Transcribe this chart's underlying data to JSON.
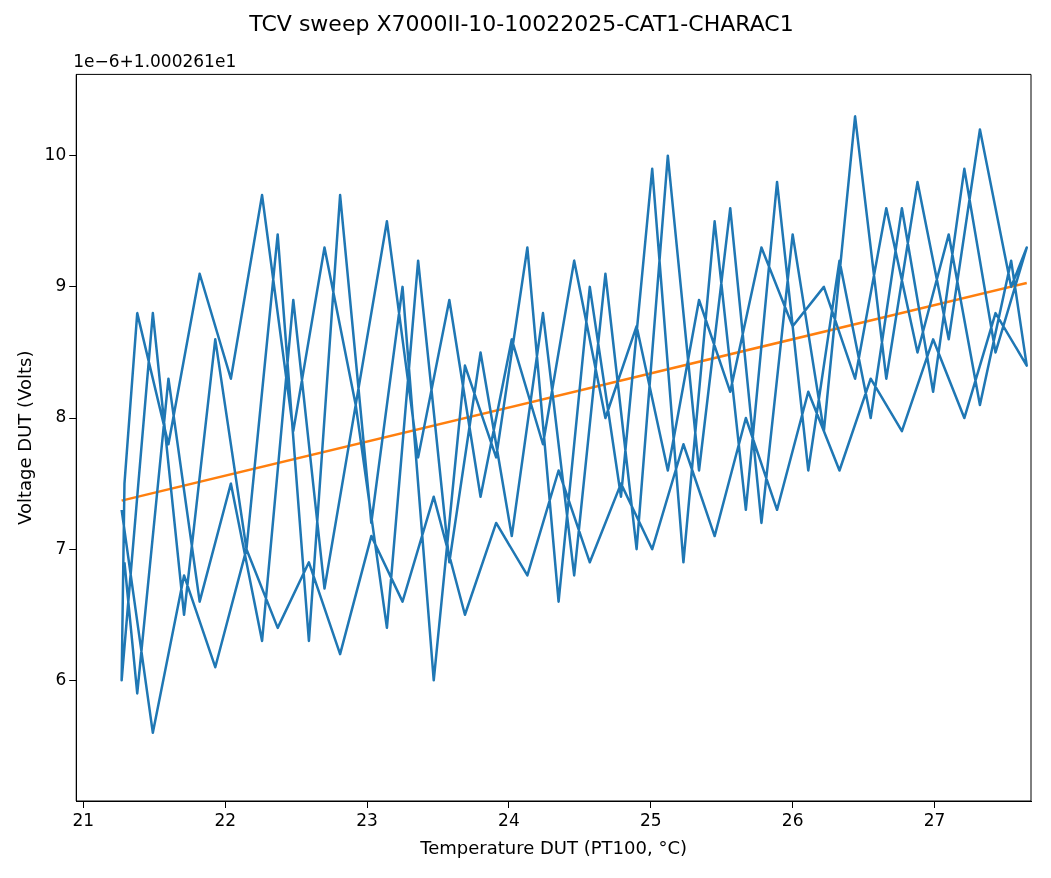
{
  "chart_data": {
    "type": "line",
    "title": "TCV sweep X7000II-10-10022025-CAT1-CHARAC1",
    "xlabel": "Temperature DUT (PT100, °C)",
    "ylabel": "Voltage DUT (Volts)",
    "annotations": [
      "1e−6+1.000261e1"
    ],
    "xlim": [
      20.95,
      27.68
    ],
    "ylim": [
      5.08,
      10.62
    ],
    "xticks": [
      21,
      22,
      23,
      24,
      25,
      26,
      27
    ],
    "yticks": [
      6,
      7,
      8,
      9,
      10
    ],
    "grid": false,
    "marker": "none",
    "line_style": "solid",
    "series": [
      {
        "color": "#1f77b4",
        "x": [
          21.27,
          21.49,
          21.71,
          21.93,
          22.15,
          22.37,
          22.59,
          22.81,
          23.03,
          23.25,
          23.47,
          23.69,
          23.91,
          24.13,
          24.35,
          24.57,
          24.79,
          25.01,
          25.23,
          25.45,
          25.67,
          25.89,
          26.11,
          26.33,
          26.55,
          26.77,
          26.99,
          27.21,
          27.43,
          27.65,
          27.54,
          27.32,
          27.1,
          26.88,
          26.66,
          26.44,
          26.22,
          26.0,
          25.78,
          25.56,
          25.34,
          25.12,
          24.9,
          24.68,
          24.46,
          24.24,
          24.02,
          23.8,
          23.58,
          23.36,
          23.14,
          22.92,
          22.7,
          22.48,
          22.26,
          22.04,
          21.82,
          21.6,
          21.38,
          21.29,
          21.27,
          21.49,
          21.71,
          21.93,
          22.15,
          22.37,
          22.59,
          22.81,
          23.03,
          23.25,
          23.47,
          23.69,
          23.91,
          24.13,
          24.35,
          24.57,
          24.79,
          25.01,
          25.23,
          25.45,
          25.67,
          25.89,
          26.11,
          26.33,
          26.55,
          26.77,
          26.99,
          27.21,
          27.43,
          27.65,
          27.54,
          27.32,
          27.1,
          26.88,
          26.66,
          26.44,
          26.22,
          26.0,
          25.78,
          25.56,
          25.34,
          25.12,
          24.9,
          24.68,
          24.46,
          24.24,
          24.02,
          23.8,
          23.58,
          23.36,
          23.14,
          22.92,
          22.7,
          22.48,
          22.26,
          22.04,
          21.82,
          21.6,
          21.38,
          21.29
        ],
        "values": [
          7.3,
          5.6,
          6.8,
          6.1,
          7.0,
          6.4,
          6.9,
          6.2,
          7.1,
          6.6,
          7.4,
          6.5,
          7.2,
          6.8,
          7.6,
          6.9,
          7.5,
          7.0,
          7.8,
          7.1,
          8.0,
          7.3,
          8.2,
          7.6,
          8.3,
          7.9,
          8.6,
          8.0,
          8.8,
          8.4,
          9.2,
          8.1,
          9.4,
          8.5,
          9.6,
          8.3,
          9.0,
          8.7,
          9.3,
          8.2,
          8.9,
          7.6,
          8.7,
          8.0,
          9.2,
          7.8,
          8.6,
          7.4,
          8.9,
          7.7,
          9.5,
          8.1,
          9.3,
          7.9,
          9.7,
          8.3,
          9.1,
          7.8,
          8.8,
          7.5,
          6.0,
          8.8,
          6.5,
          8.6,
          7.0,
          9.4,
          6.3,
          9.7,
          7.2,
          9.0,
          6.0,
          8.4,
          7.7,
          9.3,
          6.6,
          9.0,
          7.4,
          9.9,
          6.9,
          9.5,
          7.3,
          9.8,
          7.6,
          9.2,
          8.0,
          9.6,
          8.2,
          9.9,
          8.5,
          9.3,
          9.0,
          10.2,
          8.6,
          9.8,
          8.3,
          10.3,
          7.9,
          9.4,
          7.2,
          9.6,
          7.6,
          10.0,
          7.0,
          9.1,
          6.8,
          8.8,
          7.1,
          8.5,
          6.9,
          9.2,
          6.4,
          8.1,
          6.7,
          8.9,
          6.3,
          7.5,
          6.6,
          8.3,
          5.9,
          6.9
        ]
      },
      {
        "color": "#ff7f0e",
        "x": [
          21.27,
          27.65
        ],
        "values": [
          7.37,
          9.03
        ]
      }
    ]
  }
}
